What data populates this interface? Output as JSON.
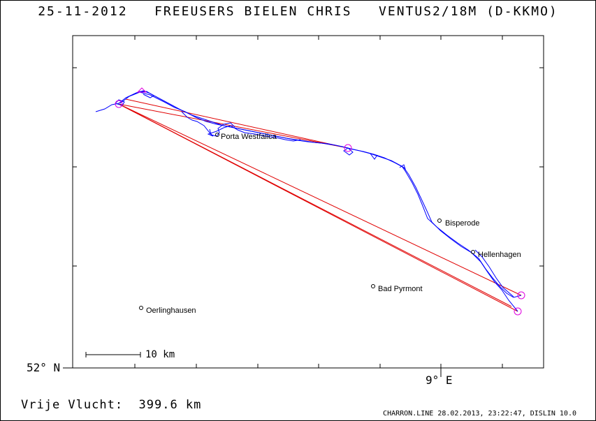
{
  "header": {
    "date": "25-11-2012",
    "pilot": "FREEUSERS BIELEN CHRIS",
    "glider": "VENTUS2/18M (D-KKMO)"
  },
  "axes": {
    "lat_label": "52° N",
    "lon_label": "9° E"
  },
  "places": [
    {
      "name": "Porta Westfalica"
    },
    {
      "name": "Bisperode"
    },
    {
      "name": "Hellenhagen"
    },
    {
      "name": "Bad Pyrmont"
    },
    {
      "name": "Oerlinghausen"
    }
  ],
  "scale": {
    "label": "10 km"
  },
  "footer": {
    "distance": "Vrije Vlucht:  399.6 km",
    "credit": "CHARRON.LINE 28.02.2013, 23:22:47, DISLIN 10.0"
  },
  "colors": {
    "track": "#0000ff",
    "task_line": "#e00000",
    "turnpoint": "#e000e0",
    "frame": "#000000"
  }
}
